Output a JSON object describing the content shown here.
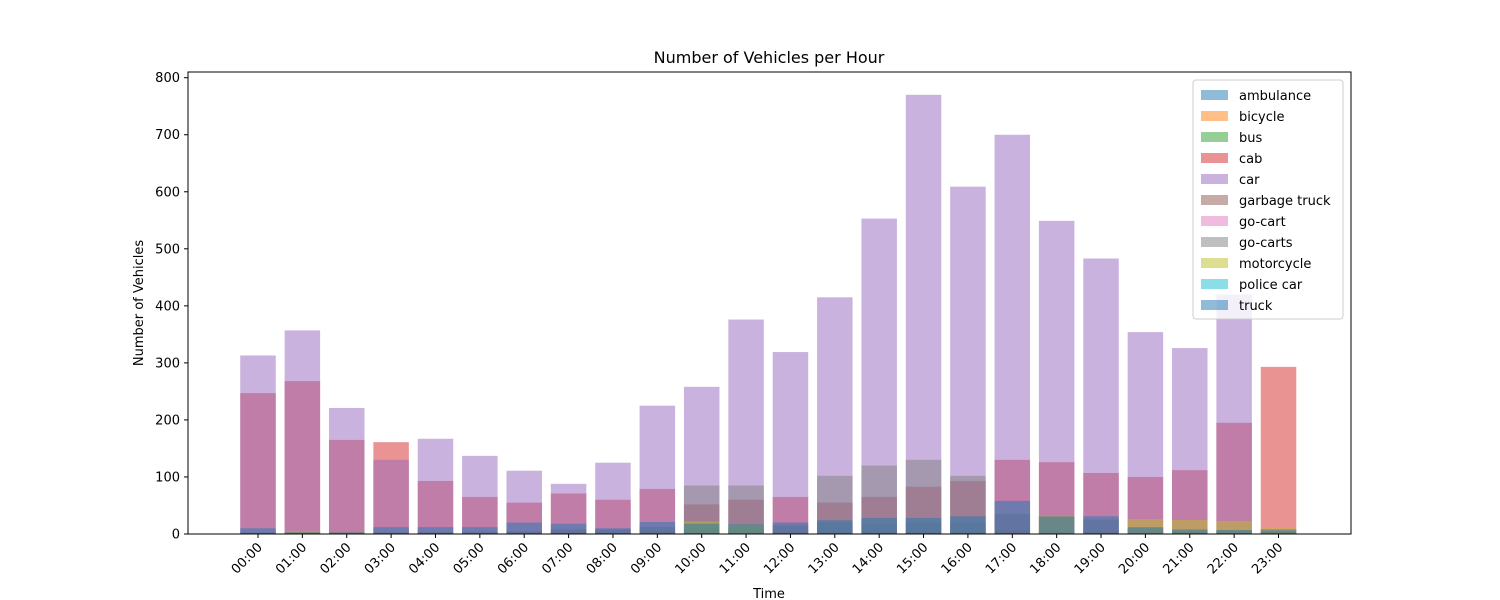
{
  "chart_data": {
    "type": "bar",
    "title": "Number of Vehicles per Hour",
    "xlabel": "Time",
    "ylabel": "Number of Vehicles",
    "ylim": [
      0,
      810
    ],
    "yticks": [
      0,
      100,
      200,
      300,
      400,
      500,
      600,
      700,
      800
    ],
    "grid": false,
    "legend_position": "top-right",
    "bar_style": "overlapping, semi-transparent",
    "categories": [
      "00:00",
      "01:00",
      "02:00",
      "03:00",
      "04:00",
      "05:00",
      "06:00",
      "07:00",
      "08:00",
      "09:00",
      "10:00",
      "11:00",
      "12:00",
      "13:00",
      "14:00",
      "15:00",
      "16:00",
      "17:00",
      "18:00",
      "19:00",
      "20:00",
      "21:00",
      "22:00",
      "23:00"
    ],
    "series": [
      {
        "name": "ambulance",
        "color": "#1f77b4",
        "values": [
          0,
          0,
          0,
          0,
          0,
          0,
          0,
          0,
          0,
          0,
          0,
          0,
          0,
          0,
          0,
          0,
          0,
          0,
          0,
          0,
          0,
          0,
          0,
          0
        ]
      },
      {
        "name": "bicycle",
        "color": "#ff7f0e",
        "values": [
          2,
          4,
          3,
          2,
          3,
          2,
          3,
          4,
          3,
          5,
          6,
          5,
          4,
          5,
          6,
          5,
          5,
          6,
          5,
          4,
          6,
          5,
          6,
          4
        ]
      },
      {
        "name": "bus",
        "color": "#2ca02c",
        "values": [
          3,
          2,
          2,
          3,
          3,
          4,
          5,
          8,
          8,
          12,
          8,
          10,
          15,
          20,
          18,
          20,
          20,
          35,
          30,
          25,
          10,
          5,
          5,
          5
        ]
      },
      {
        "name": "cab",
        "color": "#d62728",
        "values": [
          247,
          268,
          165,
          161,
          93,
          65,
          55,
          71,
          60,
          79,
          52,
          60,
          65,
          55,
          65,
          83,
          93,
          130,
          126,
          107,
          100,
          112,
          195,
          293
        ]
      },
      {
        "name": "car",
        "color": "#9467bd",
        "values": [
          313,
          357,
          221,
          130,
          167,
          137,
          111,
          88,
          125,
          225,
          258,
          376,
          319,
          415,
          553,
          770,
          609,
          700,
          549,
          483,
          354,
          326,
          420,
          0
        ]
      },
      {
        "name": "garbage truck",
        "color": "#8c564b",
        "values": [
          0,
          0,
          0,
          0,
          0,
          0,
          0,
          0,
          0,
          0,
          0,
          0,
          0,
          0,
          0,
          0,
          0,
          0,
          0,
          0,
          0,
          0,
          0,
          0
        ]
      },
      {
        "name": "go-cart",
        "color": "#e377c2",
        "values": [
          0,
          0,
          0,
          0,
          0,
          0,
          0,
          0,
          0,
          0,
          0,
          0,
          0,
          0,
          0,
          0,
          0,
          0,
          0,
          0,
          0,
          0,
          0,
          0
        ]
      },
      {
        "name": "go-carts",
        "color": "#7f7f7f",
        "values": [
          0,
          0,
          0,
          0,
          0,
          0,
          0,
          0,
          0,
          0,
          85,
          85,
          0,
          102,
          120,
          130,
          102,
          0,
          0,
          0,
          0,
          0,
          0,
          0
        ]
      },
      {
        "name": "motorcycle",
        "color": "#bcbd22",
        "values": [
          0,
          5,
          3,
          0,
          0,
          0,
          0,
          0,
          0,
          0,
          22,
          16,
          0,
          0,
          0,
          0,
          0,
          0,
          32,
          0,
          26,
          25,
          23,
          10
        ]
      },
      {
        "name": "police car",
        "color": "#17becf",
        "values": [
          0,
          0,
          0,
          0,
          0,
          0,
          0,
          0,
          0,
          0,
          0,
          0,
          0,
          0,
          0,
          0,
          0,
          0,
          0,
          0,
          0,
          0,
          0,
          0
        ]
      },
      {
        "name": "truck",
        "color": "#1f77b4",
        "values": [
          10,
          3,
          3,
          12,
          12,
          12,
          20,
          18,
          10,
          21,
          18,
          17,
          20,
          24,
          28,
          28,
          31,
          58,
          31,
          31,
          12,
          8,
          7,
          8
        ]
      }
    ]
  }
}
